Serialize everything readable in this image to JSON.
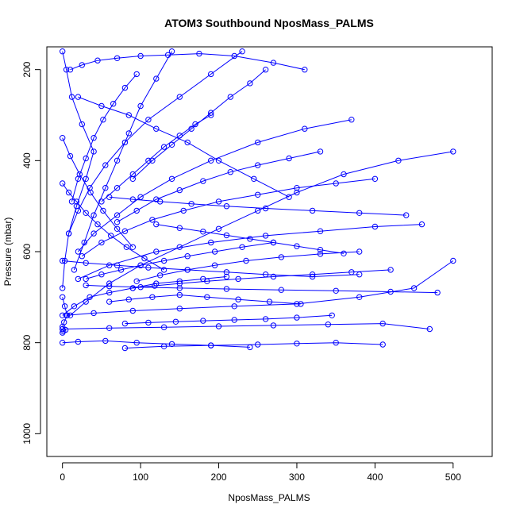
{
  "chart_data": {
    "type": "line",
    "title": "ATOM3 Southbound NposMass_PALMS",
    "xlabel": "NposMass_PALMS",
    "ylabel": "Pressure (mbar)",
    "xlim": [
      -20,
      550
    ],
    "ylim": [
      1050,
      150
    ],
    "y_inverted": true,
    "x_ticks": [
      0,
      100,
      200,
      300,
      400,
      500
    ],
    "y_ticks": [
      200,
      400,
      600,
      800,
      1000
    ],
    "grid": false,
    "legend": "none",
    "color": "#0000ff",
    "marker": "open-circle",
    "series": [
      {
        "x": [
          0,
          5,
          12,
          25,
          40,
          30,
          18,
          8,
          3,
          0
        ],
        "y": [
          160,
          200,
          260,
          320,
          380,
          440,
          500,
          560,
          620,
          680
        ]
      },
      {
        "x": [
          0,
          15,
          35,
          60,
          90,
          120,
          150,
          180,
          210
        ],
        "y": [
          740,
          720,
          700,
          690,
          680,
          670,
          665,
          660,
          655
        ]
      },
      {
        "x": [
          5,
          40,
          90,
          150,
          220,
          300,
          380,
          450,
          500
        ],
        "y": [
          740,
          735,
          730,
          725,
          720,
          715,
          700,
          680,
          620
        ]
      },
      {
        "x": [
          0,
          60,
          130,
          200,
          270,
          340,
          410,
          470
        ],
        "y": [
          770,
          768,
          766,
          764,
          762,
          760,
          758,
          770
        ]
      },
      {
        "x": [
          500,
          430,
          360,
          300,
          250,
          200,
          150,
          100,
          60,
          30,
          10
        ],
        "y": [
          380,
          400,
          430,
          470,
          510,
          550,
          590,
          630,
          670,
          710,
          740
        ]
      },
      {
        "x": [
          460,
          400,
          330,
          260,
          190,
          120,
          60,
          20
        ],
        "y": [
          540,
          545,
          555,
          565,
          580,
          600,
          630,
          660
        ]
      },
      {
        "x": [
          370,
          310,
          250,
          190,
          140,
          100,
          70,
          40,
          20
        ],
        "y": [
          310,
          330,
          360,
          400,
          440,
          480,
          520,
          560,
          600
        ]
      },
      {
        "x": [
          0,
          20,
          55,
          95,
          140,
          190,
          240
        ],
        "y": [
          800,
          798,
          796,
          800,
          803,
          806,
          810
        ]
      },
      {
        "x": [
          80,
          130,
          190,
          250,
          300,
          350,
          410
        ],
        "y": [
          812,
          808,
          806,
          804,
          802,
          800,
          804
        ]
      },
      {
        "x": [
          10,
          25,
          45,
          70,
          100,
          135,
          175,
          220,
          270,
          310
        ],
        "y": [
          200,
          190,
          180,
          175,
          170,
          168,
          165,
          170,
          185,
          200
        ]
      },
      {
        "x": [
          230,
          190,
          150,
          110,
          80,
          55,
          35,
          20,
          8
        ],
        "y": [
          160,
          210,
          260,
          310,
          360,
          410,
          460,
          510,
          560
        ]
      },
      {
        "x": [
          440,
          380,
          320,
          260,
          210,
          165,
          125,
          90,
          60
        ],
        "y": [
          520,
          515,
          510,
          505,
          500,
          495,
          490,
          485,
          480
        ]
      },
      {
        "x": [
          480,
          420,
          350,
          280,
          210,
          150,
          100,
          60,
          30
        ],
        "y": [
          690,
          688,
          686,
          684,
          682,
          680,
          678,
          676,
          674
        ]
      },
      {
        "x": [
          0,
          30,
          70,
          110,
          160,
          210,
          260,
          320,
          380
        ],
        "y": [
          620,
          625,
          630,
          635,
          640,
          645,
          650,
          655,
          650
        ]
      },
      {
        "x": [
          20,
          50,
          85,
          120,
          160,
          200,
          245,
          290
        ],
        "y": [
          260,
          280,
          300,
          330,
          360,
          400,
          440,
          480
        ]
      },
      {
        "x": [
          400,
          350,
          300,
          250,
          200,
          155,
          115,
          80,
          50,
          25
        ],
        "y": [
          440,
          450,
          460,
          475,
          490,
          510,
          530,
          555,
          580,
          610
        ]
      },
      {
        "x": [
          140,
          120,
          100,
          85,
          70,
          55,
          40,
          28,
          15
        ],
        "y": [
          160,
          220,
          280,
          340,
          400,
          460,
          520,
          580,
          640
        ]
      },
      {
        "x": [
          270,
          230,
          195,
          160,
          130,
          100,
          75,
          50,
          30
        ],
        "y": [
          580,
          590,
          600,
          610,
          620,
          630,
          640,
          650,
          660
        ]
      },
      {
        "x": [
          345,
          300,
          260,
          220,
          180,
          145,
          110,
          80
        ],
        "y": [
          740,
          745,
          748,
          750,
          752,
          754,
          756,
          758
        ]
      },
      {
        "x": [
          0,
          10,
          22,
          36,
          52,
          70,
          90
        ],
        "y": [
          350,
          390,
          430,
          470,
          510,
          550,
          590
        ]
      },
      {
        "x": [
          190,
          170,
          150,
          130,
          110,
          90,
          70,
          50
        ],
        "y": [
          300,
          320,
          345,
          370,
          400,
          430,
          460,
          490
        ]
      },
      {
        "x": [
          330,
          290,
          250,
          215,
          180,
          150,
          120,
          95,
          70
        ],
        "y": [
          380,
          395,
          410,
          425,
          445,
          465,
          485,
          510,
          535
        ]
      },
      {
        "x": [
          60,
          85,
          115,
          150,
          185,
          225,
          265,
          305
        ],
        "y": [
          710,
          705,
          700,
          695,
          700,
          705,
          710,
          715
        ]
      },
      {
        "x": [
          380,
          330,
          280,
          235,
          195,
          160,
          125,
          95
        ],
        "y": [
          600,
          605,
          612,
          620,
          630,
          640,
          652,
          665
        ]
      },
      {
        "x": [
          0,
          8,
          18,
          30,
          45,
          62,
          82,
          105,
          130
        ],
        "y": [
          450,
          470,
          490,
          515,
          540,
          565,
          590,
          615,
          640
        ]
      },
      {
        "x": [
          260,
          240,
          215,
          190,
          165,
          140,
          115,
          90
        ],
        "y": [
          200,
          230,
          260,
          295,
          330,
          365,
          400,
          440
        ]
      },
      {
        "x": [
          0,
          3,
          6,
          2,
          0,
          4,
          1,
          0
        ],
        "y": [
          700,
          720,
          740,
          755,
          765,
          772,
          775,
          778
        ]
      },
      {
        "x": [
          120,
          150,
          180,
          210,
          240,
          270,
          300,
          330,
          360
        ],
        "y": [
          540,
          548,
          556,
          564,
          572,
          580,
          588,
          596,
          604
        ]
      },
      {
        "x": [
          420,
          370,
          320,
          270,
          225,
          185,
          150,
          118,
          90
        ],
        "y": [
          640,
          645,
          650,
          655,
          660,
          665,
          670,
          675,
          680
        ]
      },
      {
        "x": [
          95,
          80,
          65,
          52,
          40,
          30,
          20,
          12
        ],
        "y": [
          210,
          240,
          275,
          310,
          350,
          395,
          440,
          490
        ]
      }
    ]
  }
}
